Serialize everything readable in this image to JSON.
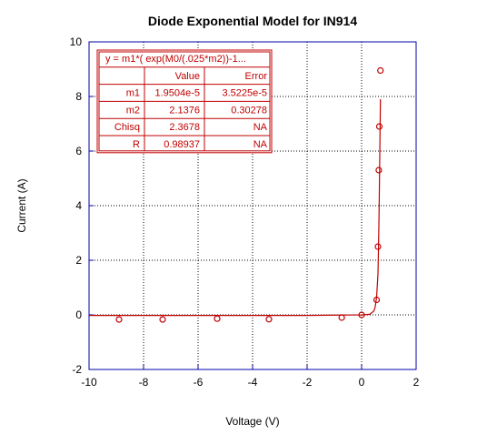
{
  "colors": {
    "axis": "#0000aa",
    "grid": "#000000",
    "series": "#c00000",
    "background": "#ffffff"
  },
  "chart_data": {
    "type": "scatter",
    "title": "Diode Exponential Model for IN914",
    "xlabel": "Voltage (V)",
    "ylabel": "Current (A)",
    "xlim": [
      -10,
      2
    ],
    "ylim": [
      -2,
      10
    ],
    "x_ticks": [
      "-10",
      "-8",
      "-6",
      "-4",
      "-2",
      "0",
      "2"
    ],
    "y_ticks": [
      "-2",
      "0",
      "2",
      "4",
      "6",
      "8",
      "10"
    ],
    "grid": "dotted",
    "series": [
      {
        "marker": "open-circle",
        "points": [
          {
            "x": -8.9,
            "y": -0.17
          },
          {
            "x": -7.3,
            "y": -0.17
          },
          {
            "x": -5.3,
            "y": -0.14
          },
          {
            "x": -3.4,
            "y": -0.16
          },
          {
            "x": -0.73,
            "y": -0.1
          },
          {
            "x": 0.0,
            "y": 0.0
          },
          {
            "x": 0.55,
            "y": 0.55
          },
          {
            "x": 0.6,
            "y": 2.5
          },
          {
            "x": 0.63,
            "y": 5.3
          },
          {
            "x": 0.65,
            "y": 6.9
          },
          {
            "x": 0.69,
            "y": 8.95
          }
        ]
      },
      {
        "line": "fit-curve",
        "curve": [
          {
            "x": -10.0,
            "y": -0.02
          },
          {
            "x": -2.0,
            "y": -0.02
          },
          {
            "x": 0.0,
            "y": 0.0
          },
          {
            "x": 0.3,
            "y": 0.02
          },
          {
            "x": 0.45,
            "y": 0.14
          },
          {
            "x": 0.5,
            "y": 0.3
          },
          {
            "x": 0.55,
            "y": 0.65
          },
          {
            "x": 0.6,
            "y": 1.5
          },
          {
            "x": 0.62,
            "y": 2.5
          },
          {
            "x": 0.64,
            "y": 3.7
          },
          {
            "x": 0.66,
            "y": 5.3
          },
          {
            "x": 0.68,
            "y": 7.0
          },
          {
            "x": 0.69,
            "y": 7.9
          }
        ]
      }
    ],
    "fit_table": {
      "equation": "y = m1*( exp(M0/(.025*m2))-1...",
      "header": [
        "",
        "Value",
        "Error"
      ],
      "rows": [
        [
          "m1",
          "1.9504e-5",
          "3.5225e-5"
        ],
        [
          "m2",
          "2.1376",
          "0.30278"
        ],
        [
          "Chisq",
          "2.3678",
          "NA"
        ],
        [
          "R",
          "0.98937",
          "NA"
        ]
      ],
      "placement": "top-left"
    }
  }
}
